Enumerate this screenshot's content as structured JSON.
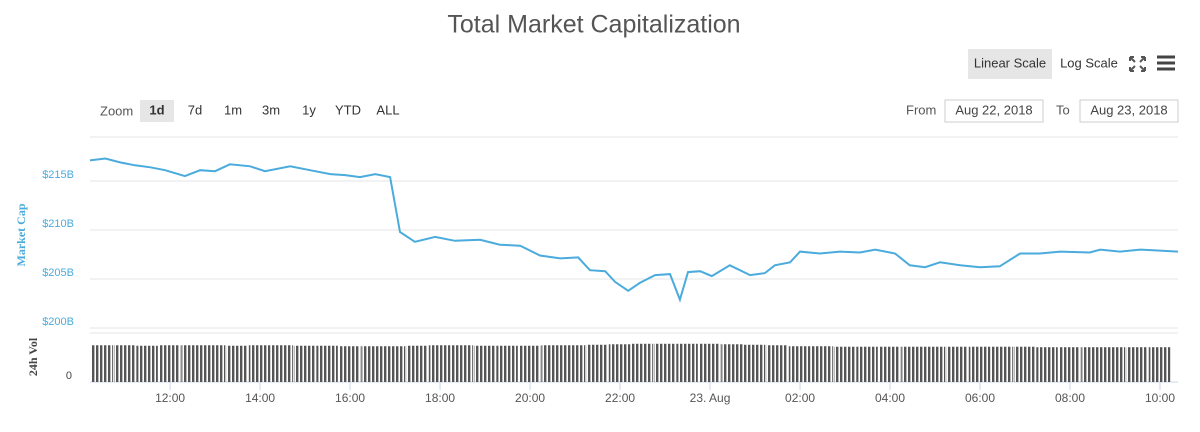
{
  "controls": {
    "scale_buttons": [
      "Linear Scale",
      "Log Scale"
    ],
    "zoom_label": "Zoom",
    "zoom_buttons": [
      "1d",
      "7d",
      "1m",
      "3m",
      "1y",
      "YTD",
      "ALL"
    ],
    "from_label": "From",
    "from_date": "Aug 22, 2018",
    "to_label": "To",
    "to_date": "Aug 23, 2018"
  },
  "chart_data": [
    {
      "type": "line",
      "title": "Total Market Capitalization",
      "y_label": "Market Cap",
      "color": "#4aabdc",
      "grid": true,
      "x": [
        10.22,
        10.56,
        10.89,
        11.22,
        11.56,
        11.89,
        12.33,
        12.67,
        13.0,
        13.33,
        13.78,
        14.11,
        14.67,
        15.11,
        15.56,
        15.89,
        16.22,
        16.56,
        16.89,
        17.11,
        17.44,
        17.89,
        18.33,
        18.89,
        19.33,
        19.78,
        20.22,
        20.67,
        21.07,
        21.33,
        21.67,
        21.89,
        22.18,
        22.44,
        22.78,
        23.11,
        23.33,
        23.51,
        23.78,
        24.04,
        24.44,
        24.89,
        25.22,
        25.44,
        25.78,
        26.0,
        26.44,
        26.89,
        27.33,
        27.67,
        28.11,
        28.44,
        28.78,
        29.11,
        29.56,
        30.0,
        30.44,
        30.89,
        31.33,
        31.78,
        32.44,
        32.67,
        33.11,
        33.56,
        34.0,
        34.4
      ],
      "values": [
        217.1,
        217.3,
        216.9,
        216.6,
        216.4,
        216.1,
        215.5,
        216.1,
        216.0,
        216.7,
        216.5,
        216.0,
        216.5,
        216.1,
        215.7,
        215.6,
        215.4,
        215.7,
        215.4,
        209.8,
        208.8,
        209.3,
        208.9,
        209.0,
        208.5,
        208.4,
        207.4,
        207.1,
        207.2,
        205.9,
        205.8,
        204.7,
        203.8,
        204.6,
        205.4,
        205.5,
        202.9,
        205.7,
        205.8,
        205.3,
        206.4,
        205.4,
        205.6,
        206.4,
        206.7,
        207.8,
        207.6,
        207.8,
        207.7,
        208.0,
        207.6,
        206.4,
        206.2,
        206.7,
        206.4,
        206.2,
        206.3,
        207.6,
        207.6,
        207.8,
        207.7,
        208.0,
        207.8,
        208.0,
        207.9,
        207.8
      ],
      "xlim": [
        10.22,
        34.4
      ],
      "xticks": [
        {
          "value": 12,
          "label": "12:00"
        },
        {
          "value": 14,
          "label": "14:00"
        },
        {
          "value": 16,
          "label": "16:00"
        },
        {
          "value": 18,
          "label": "18:00"
        },
        {
          "value": 20,
          "label": "20:00"
        },
        {
          "value": 22,
          "label": "22:00"
        },
        {
          "value": 24,
          "label": "23. Aug"
        },
        {
          "value": 26,
          "label": "02:00"
        },
        {
          "value": 28,
          "label": "04:00"
        },
        {
          "value": 30,
          "label": "06:00"
        },
        {
          "value": 32,
          "label": "08:00"
        },
        {
          "value": 34,
          "label": "10:00"
        }
      ],
      "ylim": [
        200,
        220
      ],
      "yticks": [
        {
          "value": 200,
          "label": "$200B"
        },
        {
          "value": 205,
          "label": "$205B"
        },
        {
          "value": 210,
          "label": "$210B"
        },
        {
          "value": 215,
          "label": "$215B"
        }
      ]
    },
    {
      "type": "bar",
      "y_label": "24h Vol",
      "color": "#555555",
      "x": [
        10.5,
        11.0,
        11.5,
        12.0,
        12.5,
        13.0,
        13.5,
        14.0,
        14.5,
        15.0,
        15.5,
        16.0,
        16.5,
        17.0,
        17.5,
        18.0,
        18.5,
        19.0,
        19.5,
        20.0,
        20.5,
        21.0,
        21.5,
        22.0,
        22.5,
        23.0,
        23.5,
        24.0,
        24.5,
        25.0,
        25.5,
        26.0,
        26.5,
        27.0,
        27.5,
        28.0,
        28.5,
        29.0,
        29.5,
        30.0,
        30.5,
        31.0,
        31.5,
        32.0,
        32.5,
        33.0,
        33.5,
        34.0
      ],
      "values": [
        7.5,
        7.5,
        7.4,
        7.5,
        7.5,
        7.5,
        7.4,
        7.5,
        7.5,
        7.4,
        7.4,
        7.3,
        7.3,
        7.3,
        7.4,
        7.5,
        7.5,
        7.4,
        7.4,
        7.4,
        7.5,
        7.5,
        7.6,
        7.7,
        7.8,
        7.8,
        7.8,
        7.8,
        7.7,
        7.6,
        7.5,
        7.3,
        7.3,
        7.2,
        7.2,
        7.2,
        7.2,
        7.2,
        7.2,
        7.2,
        7.2,
        7.2,
        7.1,
        7.1,
        7.1,
        7.1,
        7.1,
        7.1
      ],
      "xlim": [
        10.22,
        34.4
      ],
      "ylim": [
        0,
        10
      ],
      "yticks": [
        0
      ]
    }
  ]
}
